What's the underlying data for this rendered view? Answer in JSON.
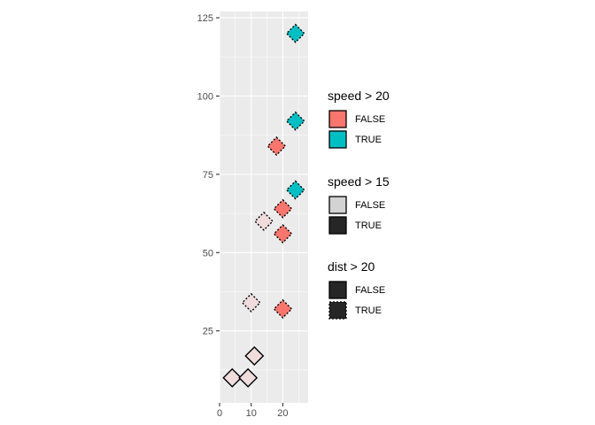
{
  "chart_data": {
    "type": "scatter",
    "xlim": [
      0,
      28
    ],
    "ylim": [
      2,
      127
    ],
    "x_ticks": [
      0,
      10,
      20
    ],
    "y_ticks": [
      25,
      50,
      75,
      100,
      125
    ],
    "grid": true,
    "legend_position": "right",
    "points": [
      {
        "x": 4,
        "y": 10,
        "fill_group": "none",
        "dashed": false
      },
      {
        "x": 9,
        "y": 10,
        "fill_group": "none",
        "dashed": false
      },
      {
        "x": 11,
        "y": 17,
        "fill_group": "none",
        "dashed": false
      },
      {
        "x": 10,
        "y": 34,
        "fill_group": "none",
        "dashed": true
      },
      {
        "x": 20,
        "y": 32,
        "fill_group": "FALSE",
        "dashed": true
      },
      {
        "x": 20,
        "y": 56,
        "fill_group": "FALSE",
        "dashed": true
      },
      {
        "x": 14,
        "y": 60,
        "fill_group": "none",
        "dashed": true
      },
      {
        "x": 20,
        "y": 64,
        "fill_group": "FALSE",
        "dashed": true
      },
      {
        "x": 24,
        "y": 70,
        "fill_group": "TRUE",
        "dashed": true
      },
      {
        "x": 18,
        "y": 84,
        "fill_group": "FALSE",
        "dashed": true
      },
      {
        "x": 24,
        "y": 92,
        "fill_group": "TRUE",
        "dashed": true
      },
      {
        "x": 24,
        "y": 120,
        "fill_group": "TRUE",
        "dashed": true
      }
    ],
    "colors": {
      "false": "#F8766D",
      "true": "#00BFC4",
      "none": "#F0DCDC",
      "panel": "#EBEBEB",
      "grid": "#FFFFFF",
      "legend_light": "#D3D3D3",
      "legend_dark": "#262626"
    }
  },
  "legends": [
    {
      "title": "speed > 20",
      "items": [
        {
          "label": "FALSE",
          "fill": "#F8766D",
          "dashed": false
        },
        {
          "label": "TRUE",
          "fill": "#00BFC4",
          "dashed": false
        }
      ]
    },
    {
      "title": "speed > 15",
      "items": [
        {
          "label": "FALSE",
          "fill": "#D3D3D3",
          "dashed": false
        },
        {
          "label": "TRUE",
          "fill": "#262626",
          "dashed": false
        }
      ]
    },
    {
      "title": "dist > 20",
      "items": [
        {
          "label": "FALSE",
          "fill": "#262626",
          "dashed": false
        },
        {
          "label": "TRUE",
          "fill": "#262626",
          "dashed": true
        }
      ]
    }
  ]
}
